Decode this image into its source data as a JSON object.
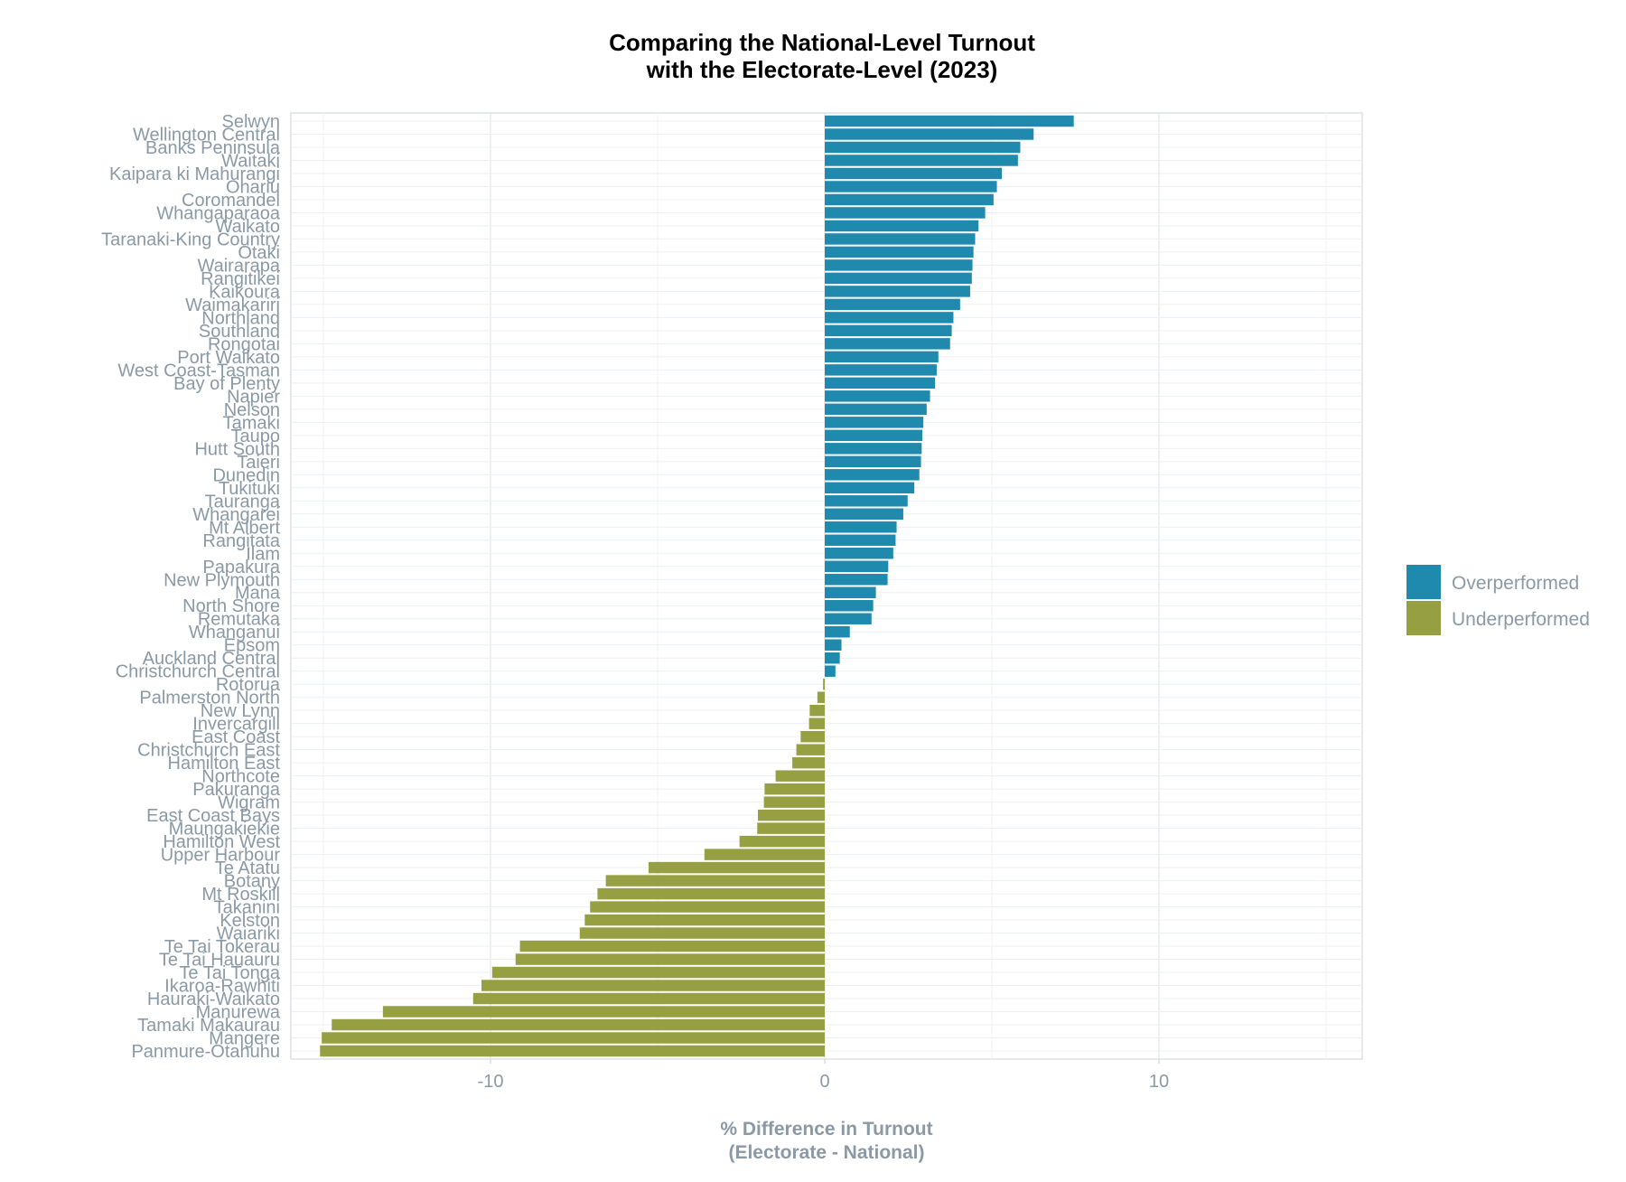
{
  "chart_data": {
    "type": "bar",
    "orientation": "horizontal",
    "title_lines": [
      "Comparing the National-Level Turnout",
      "with the Electorate-Level (2023)"
    ],
    "xlabel_lines": [
      "% Difference in Turnout",
      "(Electorate - National)"
    ],
    "ylabel": "",
    "xlim": [
      -16,
      16
    ],
    "xticks": [
      -10,
      0,
      10
    ],
    "xtick_labels": [
      "-10",
      "0",
      "10"
    ],
    "grid": true,
    "legend_position": "right",
    "legend": [
      {
        "name": "Overperformed",
        "color": "#1f8aae"
      },
      {
        "name": "Underperformed",
        "color": "#96a043"
      }
    ],
    "categories": [
      "Selwyn",
      "Wellington Central",
      "Banks Peninsula",
      "Waitaki",
      "Kaipara ki Mahurangi",
      "Ohariu",
      "Coromandel",
      "Whangaparaoa",
      "Waikato",
      "Taranaki-King Country",
      "Otaki",
      "Wairarapa",
      "Rangitikei",
      "Kaikoura",
      "Waimakariri",
      "Northland",
      "Southland",
      "Rongotai",
      "Port Waikato",
      "West Coast-Tasman",
      "Bay of Plenty",
      "Napier",
      "Nelson",
      "Tamaki",
      "Taupo",
      "Hutt South",
      "Taieri",
      "Dunedin",
      "Tukituki",
      "Tauranga",
      "Whangarei",
      "Mt Albert",
      "Rangitata",
      "Ilam",
      "Papakura",
      "New Plymouth",
      "Mana",
      "North Shore",
      "Remutaka",
      "Whanganui",
      "Epsom",
      "Auckland Central",
      "Christchurch Central",
      "Rotorua",
      "Palmerston North",
      "New Lynn",
      "Invercargill",
      "East Coast",
      "Christchurch East",
      "Hamilton East",
      "Northcote",
      "Pakuranga",
      "Wigram",
      "East Coast Bays",
      "Maungakiekie",
      "Hamilton West",
      "Upper Harbour",
      "Te Atatu",
      "Botany",
      "Mt Roskill",
      "Takanini",
      "Kelston",
      "Waiariki",
      "Te Tai Tokerau",
      "Te Tai Hauauru",
      "Te Tai Tonga",
      "Ikaroa-Rawhiti",
      "Hauraki-Waikato",
      "Manurewa",
      "Tamaki Makaurau",
      "Mangere",
      "Panmure-Otahuhu"
    ],
    "values": [
      7.45,
      6.25,
      5.85,
      5.78,
      5.3,
      5.15,
      5.05,
      4.8,
      4.6,
      4.5,
      4.45,
      4.42,
      4.4,
      4.35,
      4.05,
      3.85,
      3.8,
      3.75,
      3.4,
      3.35,
      3.3,
      3.15,
      3.05,
      2.95,
      2.92,
      2.9,
      2.88,
      2.83,
      2.68,
      2.48,
      2.35,
      2.15,
      2.12,
      2.05,
      1.9,
      1.88,
      1.53,
      1.45,
      1.4,
      0.75,
      0.5,
      0.45,
      0.32,
      -0.05,
      -0.22,
      -0.45,
      -0.47,
      -0.72,
      -0.85,
      -0.97,
      -1.47,
      -1.8,
      -1.82,
      -2.0,
      -2.02,
      -2.55,
      -3.6,
      -5.27,
      -6.55,
      -6.8,
      -7.02,
      -7.18,
      -7.33,
      -9.12,
      -9.25,
      -9.95,
      -10.27,
      -10.52,
      -13.22,
      -14.75,
      -15.05,
      -15.1
    ]
  }
}
